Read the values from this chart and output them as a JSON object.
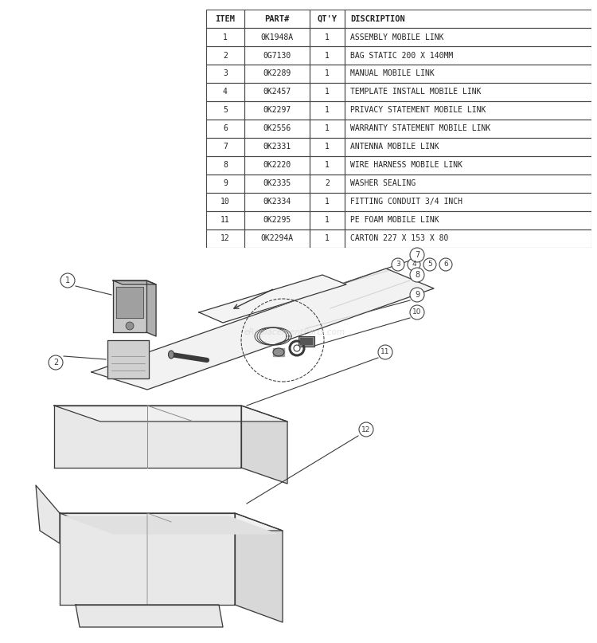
{
  "table_headers": [
    "ITEM",
    "PART#",
    "QT'Y",
    "DISCRIPTION"
  ],
  "table_rows": [
    [
      "1",
      "0K1948A",
      "1",
      "ASSEMBLY MOBILE LINK"
    ],
    [
      "2",
      "0G7130",
      "1",
      "BAG STATIC 200 X 140MM"
    ],
    [
      "3",
      "0K2289",
      "1",
      "MANUAL MOBILE LINK"
    ],
    [
      "4",
      "0K2457",
      "1",
      "TEMPLATE INSTALL MOBILE LINK"
    ],
    [
      "5",
      "0K2297",
      "1",
      "PRIVACY STATEMENT MOBILE LINK"
    ],
    [
      "6",
      "0K2556",
      "1",
      "WARRANTY STATEMENT MOBILE LINK"
    ],
    [
      "7",
      "0K2331",
      "1",
      "ANTENNA MOBILE LINK"
    ],
    [
      "8",
      "0K2220",
      "1",
      "WIRE HARNESS MOBILE LINK"
    ],
    [
      "9",
      "0K2335",
      "2",
      "WASHER SEALING"
    ],
    [
      "10",
      "0K2334",
      "1",
      "FITTING CONDUIT 3/4 INCH"
    ],
    [
      "11",
      "0K2295",
      "1",
      "PE FOAM MOBILE LINK"
    ],
    [
      "12",
      "0K2294A",
      "1",
      "CARTON 227 X 153 X 80"
    ]
  ],
  "watermark": "eReplacementParts.com",
  "bg_color": "#ffffff",
  "line_color": "#4a4a4a",
  "text_color": "#222222"
}
